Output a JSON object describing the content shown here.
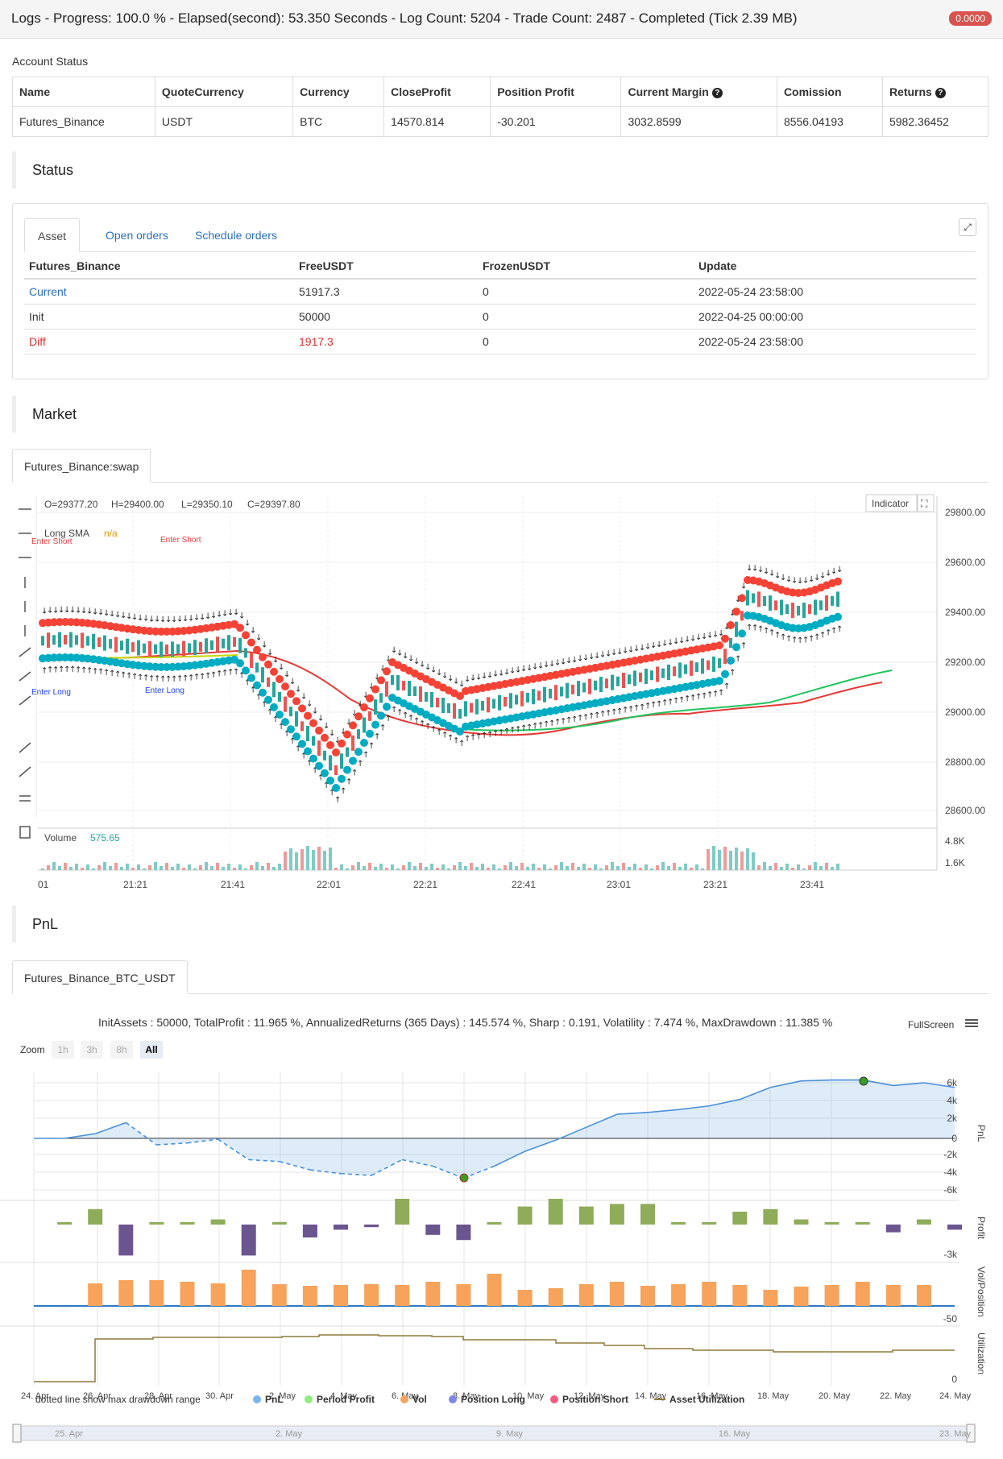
{
  "topbar": {
    "title": "Logs - Progress: 100.0 % - Elapsed(second): 53.350 Seconds - Log Count: 5204 - Trade Count: 2487 - Completed (Tick 2.39 MB)",
    "badge": "0.0000"
  },
  "account": {
    "label": "Account Status",
    "headers": [
      "Name",
      "QuoteCurrency",
      "Currency",
      "CloseProfit",
      "Position Profit",
      "Current Margin",
      "Comission",
      "Returns"
    ],
    "row": [
      "Futures_Binance",
      "USDT",
      "BTC",
      "14570.814",
      "-30.201",
      "3032.8599",
      "8556.04193",
      "5982.36452"
    ]
  },
  "status": {
    "title": "Status",
    "tabs": [
      "Asset",
      "Open orders",
      "Schedule orders"
    ],
    "headers": [
      "Futures_Binance",
      "FreeUSDT",
      "FrozenUSDT",
      "Update"
    ],
    "rows": [
      [
        "Current",
        "51917.3",
        "0",
        "2022-05-24 23:58:00"
      ],
      [
        "Init",
        "50000",
        "0",
        "2022-04-25 00:00:00"
      ],
      [
        "Diff",
        "1917.3",
        "0",
        "2022-05-24 23:58:00"
      ]
    ]
  },
  "market": {
    "title": "Market",
    "tab": "Futures_Binance:swap",
    "ohlc": {
      "o": "O=29377.20",
      "h": "H=29400.00",
      "l": "L=29350.10",
      "c": "C=29397.80"
    },
    "long_sma_label": "Long SMA",
    "long_sma_value": "n/a",
    "indicator_button": "Indicator",
    "volume_label": "Volume",
    "volume_value": "575.65",
    "price_ticks": [
      "29800.00",
      "29600.00",
      "29400.00",
      "29200.00",
      "29000.00",
      "28800.00",
      "28600.00"
    ],
    "volume_ticks": [
      "4.8K",
      "1.6K"
    ],
    "time_ticks": [
      "01",
      "21:21",
      "21:41",
      "22:01",
      "22:21",
      "22:41",
      "23:01",
      "23:21",
      "23:41"
    ],
    "annotations": [
      "Enter Short",
      "Enter Long",
      "Enter Long",
      "Enter Short",
      "1"
    ]
  },
  "pnl": {
    "title": "PnL",
    "tab": "Futures_Binance_BTC_USDT",
    "stats": "InitAssets : 50000, TotalProfit : 11.965 %, AnnualizedReturns (365 Days) : 145.574 %, Sharp : 0.191, Volatility : 7.474 %, MaxDrawdown : 11.385 %",
    "fullscreen": "FullScreen",
    "zoom_label": "Zoom",
    "zoom_buttons": [
      "1h",
      "3h",
      "8h",
      "All"
    ],
    "axis_labels": [
      "PnL",
      "Profit",
      "Vol/Position",
      "Utilization"
    ],
    "pnl_ticks": [
      "6k",
      "4k",
      "2k",
      "0",
      "-2k",
      "-4k",
      "-6k"
    ],
    "profit_tick": "-3k",
    "vol_tick": "-50",
    "util_tick": "0",
    "date_ticks": [
      "24. Apr",
      "26. Apr",
      "28. Apr",
      "30. Apr",
      "2. May",
      "4. May",
      "6. May",
      "8. May",
      "10. May",
      "12. May",
      "14. May",
      "16. May",
      "18. May",
      "20. May",
      "22. May",
      "24. May"
    ],
    "navigator_ticks": [
      "25. Apr",
      "2. May",
      "9. May",
      "16. May",
      "23. May"
    ],
    "legend_note": "dotted line show max drawdown range",
    "legend": [
      {
        "name": "PnL",
        "color": "#7cb5ec"
      },
      {
        "name": "Period Profit",
        "color": "#90ed7d"
      },
      {
        "name": "Vol",
        "color": "#f7a35c"
      },
      {
        "name": "Position Long",
        "color": "#8085e9"
      },
      {
        "name": "Position Short",
        "color": "#f15c80"
      },
      {
        "name": "Asset Utilization",
        "color": "#8d7b3b"
      }
    ]
  },
  "chart_data": {
    "type": "line",
    "title": "",
    "x": [
      "24. Apr",
      "25. Apr",
      "26. Apr",
      "27. Apr",
      "28. Apr",
      "29. Apr",
      "30. Apr",
      "1. May",
      "2. May",
      "3. May",
      "4. May",
      "5. May",
      "6. May",
      "7. May",
      "8. May",
      "9. May",
      "10. May",
      "11. May",
      "12. May",
      "13. May",
      "14. May",
      "15. May",
      "16. May",
      "17. May",
      "18. May",
      "19. May",
      "20. May",
      "21. May",
      "22. May",
      "23. May",
      "24. May"
    ],
    "series": [
      {
        "name": "PnL",
        "values": [
          0,
          0,
          500,
          1700,
          -700,
          -500,
          -100,
          -2300,
          -2500,
          -3400,
          -3800,
          -4000,
          -2300,
          -3000,
          -4300,
          -3000,
          -1400,
          -200,
          1200,
          2600,
          2800,
          3100,
          3500,
          4200,
          5500,
          6200,
          6300,
          6300,
          5700,
          6000,
          5500
        ]
      }
    ],
    "ylim": [
      -6000,
      6000
    ]
  }
}
